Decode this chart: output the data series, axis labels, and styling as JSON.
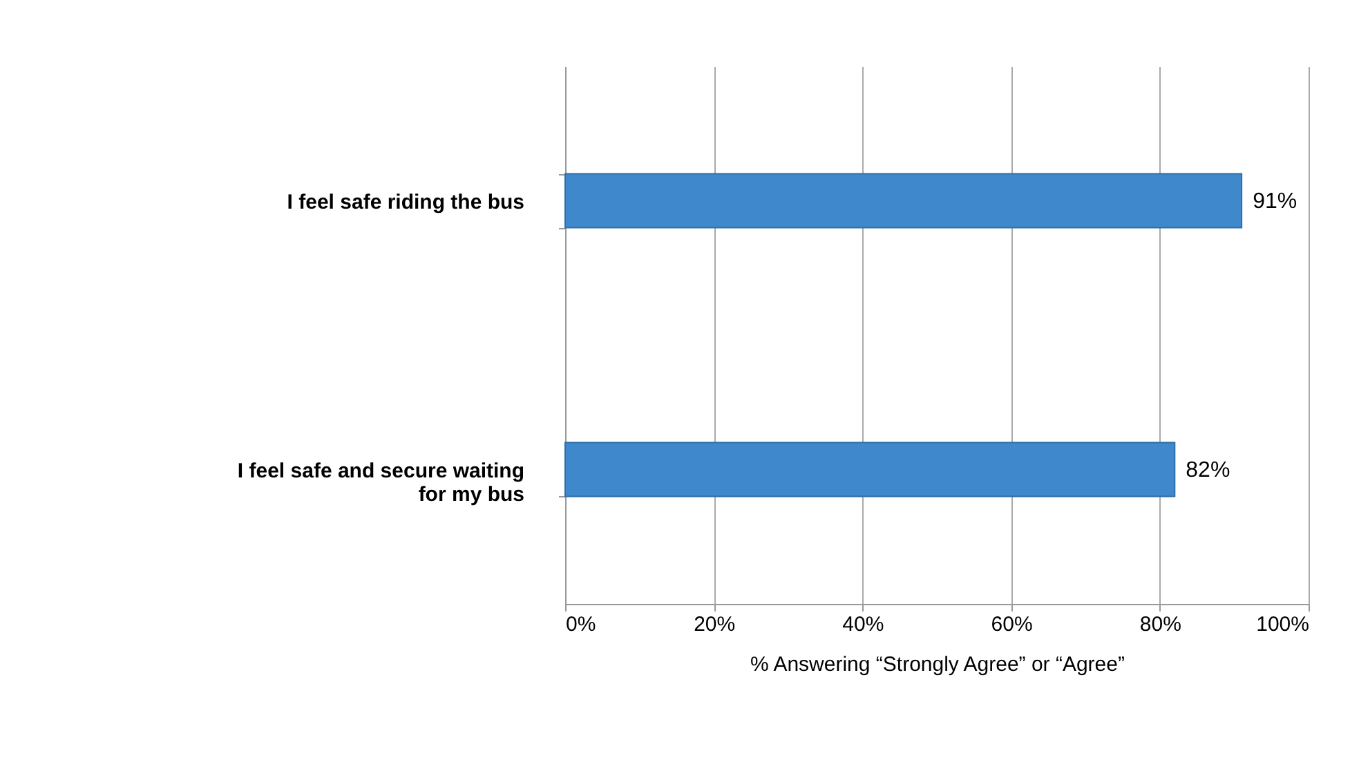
{
  "chart_data": {
    "type": "bar",
    "orientation": "horizontal",
    "categories": [
      "I feel safe riding the bus",
      "I feel safe and secure waiting for my bus"
    ],
    "values": [
      91,
      82
    ],
    "color": "#3f88cc",
    "value_labels": [
      "91%",
      "82%"
    ],
    "xlabel": "% Answering “Strongly Agree” or “Agree”",
    "xlim": [
      0,
      100
    ],
    "xticks": [
      {
        "value": 0,
        "label": "0%"
      },
      {
        "value": 20,
        "label": "20%"
      },
      {
        "value": 40,
        "label": "40%"
      },
      {
        "value": 60,
        "label": "60%"
      },
      {
        "value": 80,
        "label": "80%"
      },
      {
        "value": 100,
        "label": "100%"
      }
    ],
    "grid": "x"
  }
}
